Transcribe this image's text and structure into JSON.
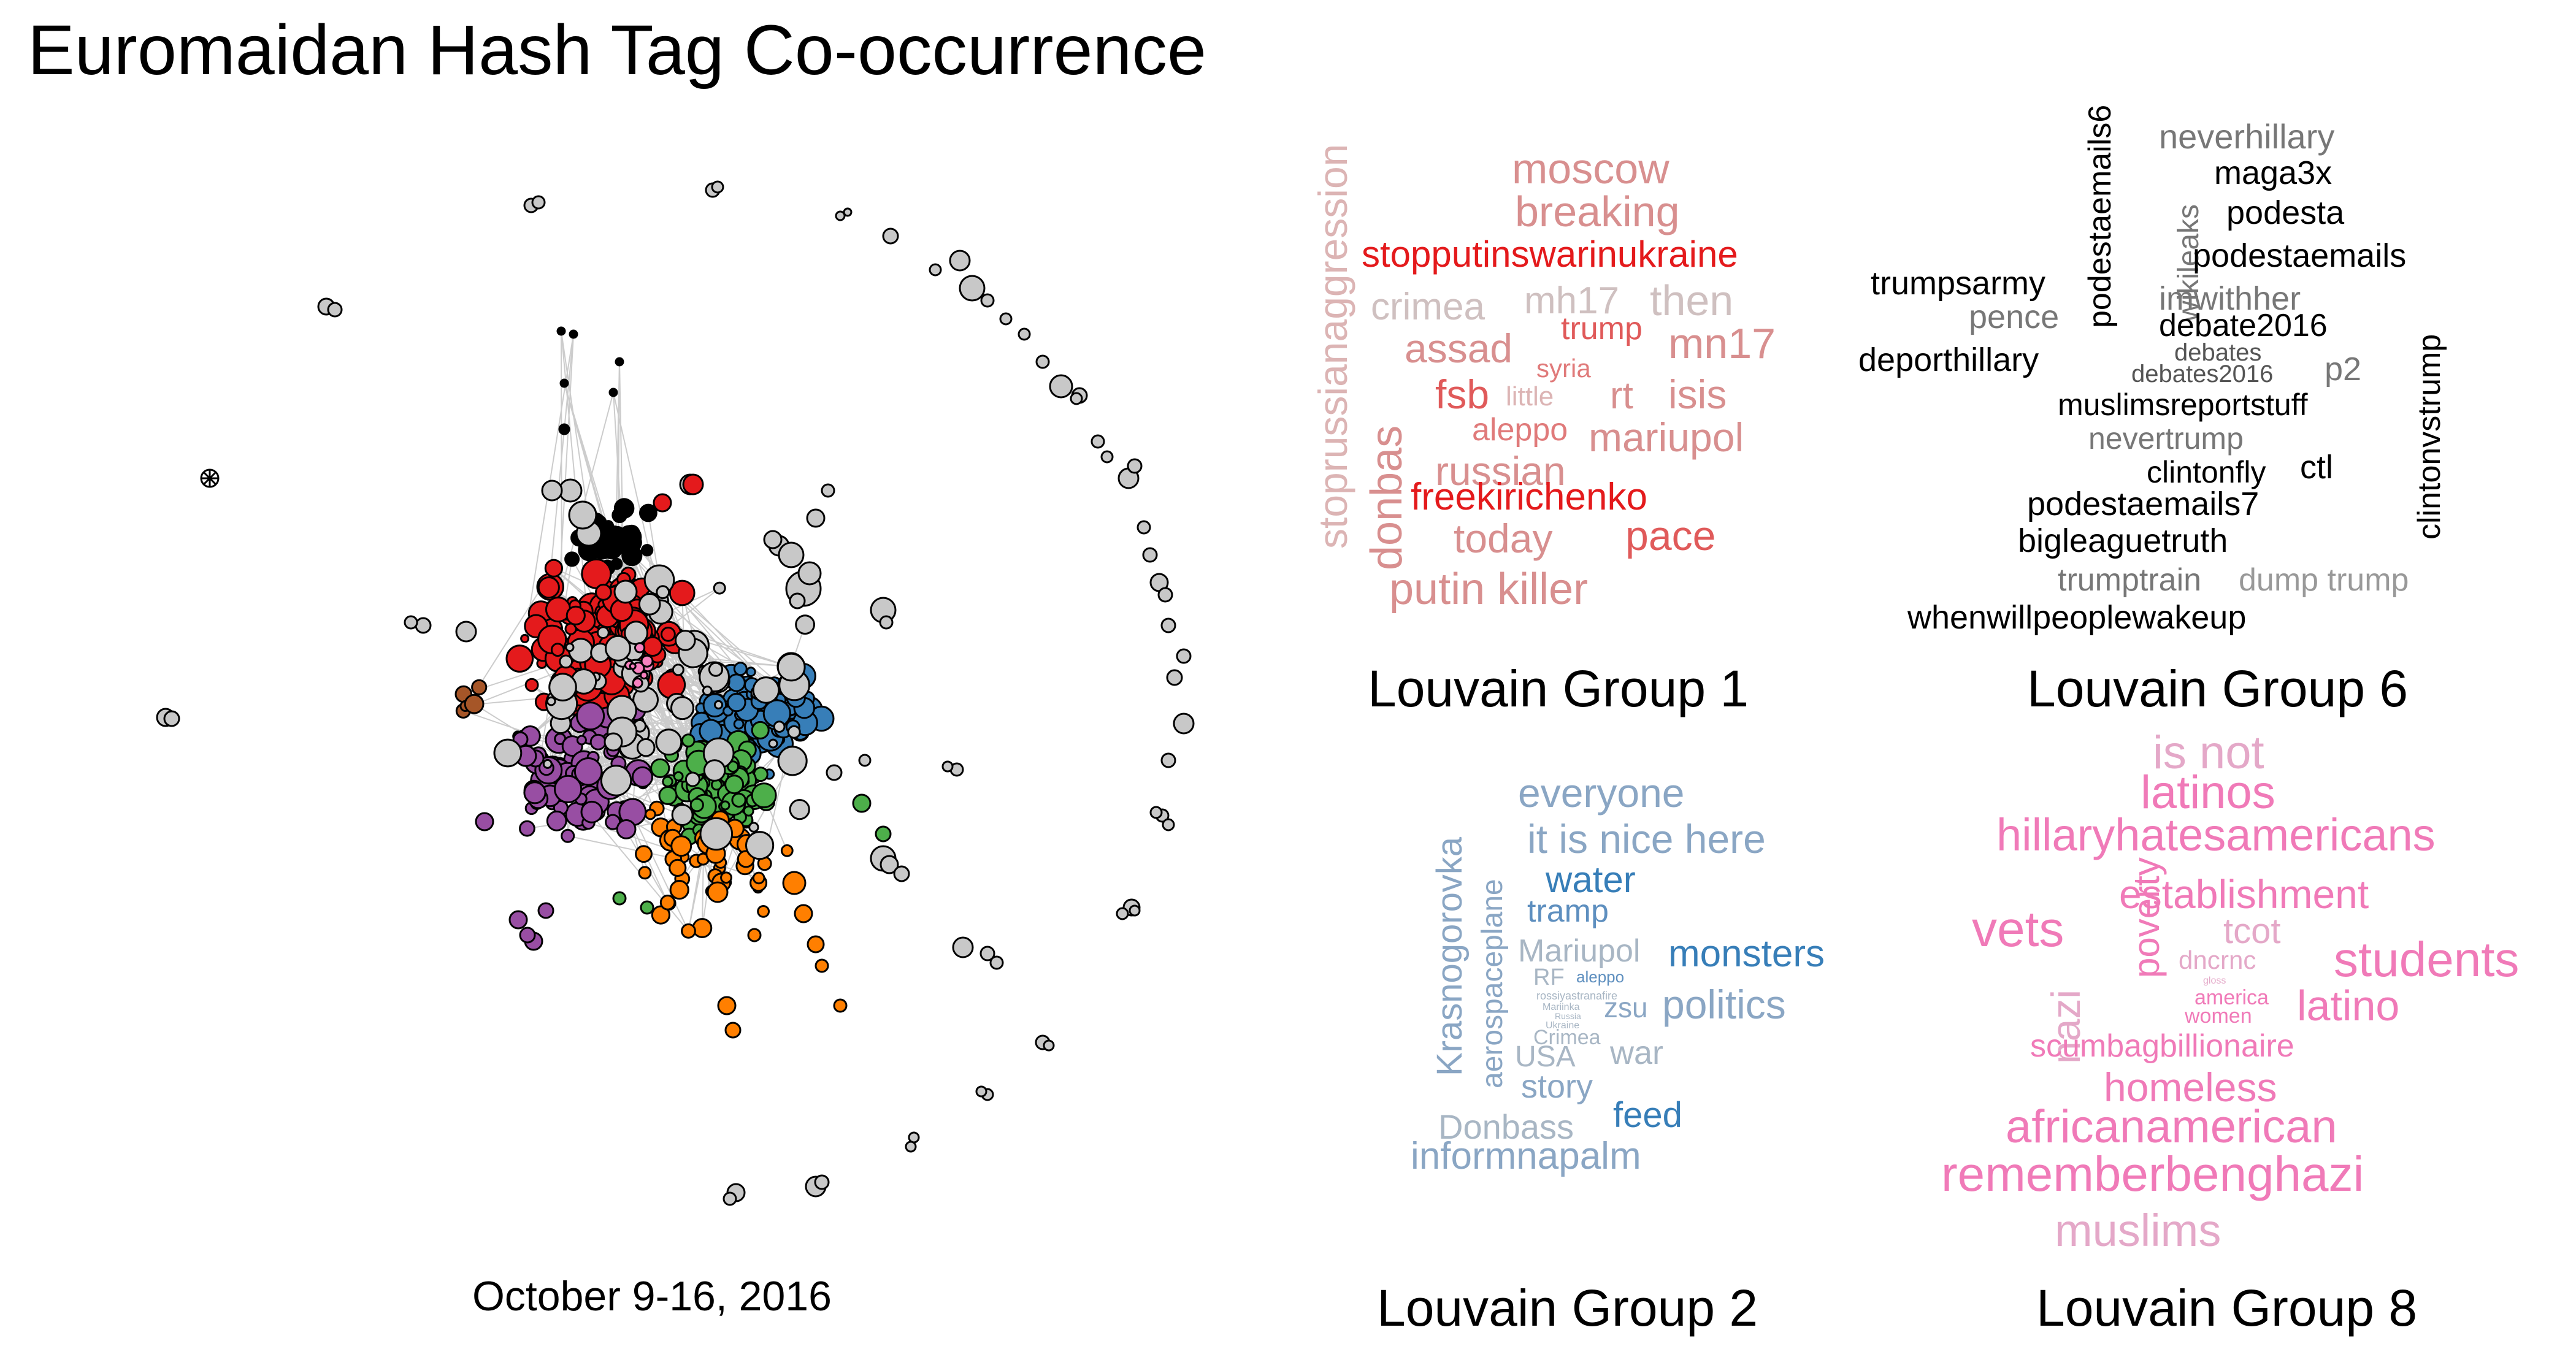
{
  "title": "Euromaidan Hash Tag Co-occurrence",
  "date_range": "October 9-16, 2016",
  "network": {
    "node_colors": {
      "gray": "#c8c8c8",
      "black": "#000000",
      "red": "#e41a1c",
      "blue": "#377eb8",
      "green": "#4daf4a",
      "purple": "#984ea3",
      "orange": "#ff7f00",
      "brown": "#a65628",
      "pink": "#f781bf"
    }
  },
  "groups": {
    "g1": {
      "title": "Louvain Group 1",
      "words": [
        {
          "text": "stoprussianaggression",
          "color": "#dcb4b4"
        },
        {
          "text": "donbas",
          "color": "#d88f8f"
        },
        {
          "text": "moscow",
          "color": "#d88f8f"
        },
        {
          "text": "breaking",
          "color": "#d88f8f"
        },
        {
          "text": "stopputinswarinukraine",
          "color": "#e41a1c"
        },
        {
          "text": "crimea",
          "color": "#cfc0c0"
        },
        {
          "text": "mh17",
          "color": "#cfc0c0"
        },
        {
          "text": "then",
          "color": "#cfc0c0"
        },
        {
          "text": "trump",
          "color": "#e05a5a"
        },
        {
          "text": "assad",
          "color": "#d88f8f"
        },
        {
          "text": "syria",
          "color": "#e07a7a"
        },
        {
          "text": "mn17",
          "color": "#d88f8f"
        },
        {
          "text": "fsb",
          "color": "#e05a5a"
        },
        {
          "text": "little",
          "color": "#dcb4b4"
        },
        {
          "text": "rt",
          "color": "#d88f8f"
        },
        {
          "text": "isis",
          "color": "#d88f8f"
        },
        {
          "text": "aleppo",
          "color": "#e07a7a"
        },
        {
          "text": "mariupol",
          "color": "#d88f8f"
        },
        {
          "text": "russian",
          "color": "#d88f8f"
        },
        {
          "text": "freekirichenko",
          "color": "#e41a1c"
        },
        {
          "text": "today",
          "color": "#d88f8f"
        },
        {
          "text": "pace",
          "color": "#e05a5a"
        },
        {
          "text": "putin killer",
          "color": "#d88f8f"
        }
      ]
    },
    "g6": {
      "title": "Louvain Group 6",
      "words": [
        {
          "text": "podestaemails6",
          "color": "#000000"
        },
        {
          "text": "neverhillary",
          "color": "#777777"
        },
        {
          "text": "maga3x",
          "color": "#000000"
        },
        {
          "text": "podesta",
          "color": "#000000"
        },
        {
          "text": "wikileaks",
          "color": "#777777"
        },
        {
          "text": "podestaemails",
          "color": "#000000"
        },
        {
          "text": "trumpsarmy",
          "color": "#000000"
        },
        {
          "text": "imwithher",
          "color": "#777777"
        },
        {
          "text": "pence",
          "color": "#777777"
        },
        {
          "text": "debate2016",
          "color": "#000000"
        },
        {
          "text": "clintonvstrump",
          "color": "#000000"
        },
        {
          "text": "deporthillary",
          "color": "#000000"
        },
        {
          "text": "debates",
          "color": "#555555"
        },
        {
          "text": "debates2016",
          "color": "#555555"
        },
        {
          "text": "p2",
          "color": "#777777"
        },
        {
          "text": "muslimsreportstuff",
          "color": "#000000"
        },
        {
          "text": "nevertrump",
          "color": "#777777"
        },
        {
          "text": "clintonfly",
          "color": "#000000"
        },
        {
          "text": "ctl",
          "color": "#000000"
        },
        {
          "text": "podestaemails7",
          "color": "#000000"
        },
        {
          "text": "bigleaguetruth",
          "color": "#000000"
        },
        {
          "text": "trumptrain",
          "color": "#777777"
        },
        {
          "text": "dump trump",
          "color": "#999999"
        },
        {
          "text": "whenwillpeoplewakeup",
          "color": "#000000"
        }
      ]
    },
    "g2": {
      "title": "Louvain Group 2",
      "words": [
        {
          "text": "Krasnogorovka",
          "color": "#8aa6c4"
        },
        {
          "text": "aerospaceplane",
          "color": "#8aa6c4"
        },
        {
          "text": "everyone",
          "color": "#8aa6c4"
        },
        {
          "text": "it is nice here",
          "color": "#8aa6c4"
        },
        {
          "text": "water",
          "color": "#377eb8"
        },
        {
          "text": "tramp",
          "color": "#5e8fbf"
        },
        {
          "text": "Mariupol",
          "color": "#a8b6c4"
        },
        {
          "text": "monsters",
          "color": "#377eb8"
        },
        {
          "text": "RF",
          "color": "#a8b6c4"
        },
        {
          "text": "aleppo",
          "color": "#5e8fbf"
        },
        {
          "text": "rossiyastranafire",
          "color": "#a8b6c4"
        },
        {
          "text": "Mariinka",
          "color": "#a8b6c4"
        },
        {
          "text": "Russia",
          "color": "#a8b6c4"
        },
        {
          "text": "Ukraine",
          "color": "#a8b6c4"
        },
        {
          "text": "zsu",
          "color": "#8aa6c4"
        },
        {
          "text": "politics",
          "color": "#8aa6c4"
        },
        {
          "text": "Crimea",
          "color": "#a8b6c4"
        },
        {
          "text": "USA",
          "color": "#a8b6c4"
        },
        {
          "text": "war",
          "color": "#a8b6c4"
        },
        {
          "text": "story",
          "color": "#8aa6c4"
        },
        {
          "text": "feed",
          "color": "#377eb8"
        },
        {
          "text": "Donbass",
          "color": "#a8b6c4"
        },
        {
          "text": "informnapalm",
          "color": "#8aa6c4"
        }
      ]
    },
    "g8": {
      "title": "Louvain Group 8",
      "words": [
        {
          "text": "is not",
          "color": "#e4a8c8"
        },
        {
          "text": "latinos",
          "color": "#f07ab8"
        },
        {
          "text": "hillaryhatesamericans",
          "color": "#f07ab8"
        },
        {
          "text": "establishment",
          "color": "#f07ab8"
        },
        {
          "text": "poverty",
          "color": "#f07ab8"
        },
        {
          "text": "vets",
          "color": "#f07ab8"
        },
        {
          "text": "tcot",
          "color": "#e4a8c8"
        },
        {
          "text": "nazi",
          "color": "#e4a8c8"
        },
        {
          "text": "dnc",
          "color": "#e4a8c8"
        },
        {
          "text": "rnc",
          "color": "#e4a8c8"
        },
        {
          "text": "students",
          "color": "#f07ab8"
        },
        {
          "text": "gloss",
          "color": "#e4a8c8"
        },
        {
          "text": "america",
          "color": "#f07ab8"
        },
        {
          "text": "women",
          "color": "#f07ab8"
        },
        {
          "text": "latino",
          "color": "#f07ab8"
        },
        {
          "text": "scumbagbillionaire",
          "color": "#f07ab8"
        },
        {
          "text": "homeless",
          "color": "#f07ab8"
        },
        {
          "text": "africanamerican",
          "color": "#f07ab8"
        },
        {
          "text": "rememberbenghazi",
          "color": "#f07ab8"
        },
        {
          "text": "muslims",
          "color": "#e4a8c8"
        }
      ]
    }
  }
}
